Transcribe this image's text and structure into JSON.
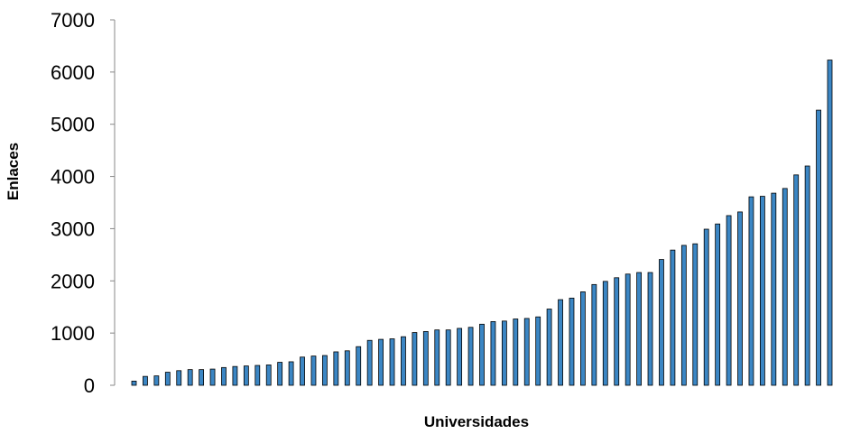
{
  "chart_data": {
    "type": "bar",
    "title": "",
    "xlabel": "Universidades",
    "ylabel": "Enlaces",
    "ylim": [
      0,
      7000
    ],
    "yticks": [
      "0",
      "1000",
      "2000",
      "3000",
      "4000",
      "5000",
      "6000",
      "7000"
    ],
    "grid": false,
    "legend": "none",
    "colors": {
      "bar_fill": "#3b86c4",
      "bar_stroke": "#000000",
      "axis": "#888888"
    },
    "values": [
      80,
      170,
      180,
      250,
      280,
      300,
      300,
      310,
      340,
      360,
      370,
      380,
      390,
      440,
      450,
      540,
      560,
      570,
      640,
      660,
      740,
      860,
      880,
      890,
      930,
      1010,
      1030,
      1060,
      1060,
      1090,
      1110,
      1170,
      1220,
      1230,
      1270,
      1280,
      1310,
      1460,
      1640,
      1670,
      1790,
      1930,
      1990,
      2060,
      2130,
      2160,
      2160,
      2410,
      2590,
      2680,
      2710,
      2990,
      3090,
      3250,
      3320,
      3610,
      3620,
      3680,
      3770,
      4030,
      4200,
      5270,
      6230
    ]
  }
}
